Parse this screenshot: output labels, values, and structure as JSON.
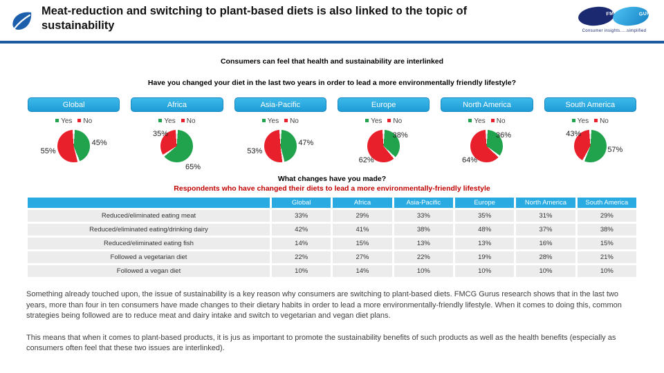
{
  "header": {
    "title": "Meat-reduction and switching to plant-based diets is also linked to the topic of sustainability",
    "logo": {
      "left": "FMCG",
      "right": "GURUS",
      "tagline": "Consumer insights.....simplified"
    }
  },
  "intro": {
    "statement": "Consumers can feel that health and sustainability are interlinked",
    "question": "Have you changed your diet in the last two years in order to lead a more environmentally friendly lifestyle?"
  },
  "legend": {
    "yes": "Yes",
    "no": "No"
  },
  "regions": [
    {
      "name": "Global",
      "yes": 45,
      "no": 55,
      "yes_label": "45%",
      "no_label": "55%",
      "yes_pos": "right-up",
      "no_pos": "left-mid"
    },
    {
      "name": "Africa",
      "yes": 65,
      "no": 35,
      "yes_label": "65%",
      "no_label": "35%",
      "yes_pos": "bottom-right",
      "no_pos": "top-left"
    },
    {
      "name": "Asia-Pacific",
      "yes": 47,
      "no": 53,
      "yes_label": "47%",
      "no_label": "53%",
      "yes_pos": "right-up",
      "no_pos": "left-mid"
    },
    {
      "name": "Europe",
      "yes": 38,
      "no": 62,
      "yes_label": "38%",
      "no_label": "62%",
      "yes_pos": "top-right",
      "no_pos": "bottom-left"
    },
    {
      "name": "North America",
      "yes": 36,
      "no": 64,
      "yes_label": "36%",
      "no_label": "64%",
      "yes_pos": "top-right",
      "no_pos": "bottom-left"
    },
    {
      "name": "South America",
      "yes": 57,
      "no": 43,
      "yes_label": "57%",
      "no_label": "43%",
      "yes_pos": "right-mid",
      "no_pos": "top-left"
    }
  ],
  "changes": {
    "title": "What changes have you made?",
    "subtitle": "Respondents who have changed their diets to lead a more environmentally-friendly lifestyle"
  },
  "table": {
    "columns": [
      "",
      "Global",
      "Africa",
      "Asia-Pacific",
      "Europe",
      "North America",
      "South America"
    ],
    "rows": [
      {
        "label": "Reduced/eliminated eating meat",
        "values": [
          "33%",
          "29%",
          "33%",
          "35%",
          "31%",
          "29%"
        ]
      },
      {
        "label": "Reduced/eliminated eating/drinking dairy",
        "values": [
          "42%",
          "41%",
          "38%",
          "48%",
          "37%",
          "38%"
        ]
      },
      {
        "label": "Reduced/eliminated eating fish",
        "values": [
          "14%",
          "15%",
          "13%",
          "13%",
          "16%",
          "15%"
        ]
      },
      {
        "label": "Followed a vegetarian diet",
        "values": [
          "22%",
          "27%",
          "22%",
          "19%",
          "28%",
          "21%"
        ]
      },
      {
        "label": "Followed a vegan diet",
        "values": [
          "10%",
          "14%",
          "10%",
          "10%",
          "10%",
          "10%"
        ]
      }
    ]
  },
  "paragraphs": [
    "Something already touched upon, the issue of sustainability is a key reason why consumers are switching to plant-based diets. FMCG Gurus research shows that in the last two years, more than four in ten consumers have made changes to their dietary habits in order to lead a more environmentally-friendly lifestyle. When it comes to doing this, common strategies being followed are to reduce meat and dairy intake and switch to vegetarian and vegan diet plans.",
    "This means that when it comes to plant-based products, it is jus as important to promote the sustainability benefits of such products as well as the health benefits (especially as consumers often feel that these two issues are interlinked)."
  ],
  "colors": {
    "accent_cyan": "#29ABE2",
    "yes_green": "#21A24D",
    "no_red": "#E8202C",
    "header_blue": "#1D5AA0",
    "red_text": "#C00000",
    "leaf_blue": "#1B5EAB"
  },
  "chart_data": [
    {
      "type": "pie",
      "title": "Have you changed your diet in the last two years in order to lead a more environmentally friendly lifestyle?",
      "legend": [
        "Yes",
        "No"
      ],
      "legend_position": "above each pie",
      "series": [
        {
          "name": "Global",
          "values": {
            "Yes": 45,
            "No": 55
          }
        },
        {
          "name": "Africa",
          "values": {
            "Yes": 65,
            "No": 35
          }
        },
        {
          "name": "Asia-Pacific",
          "values": {
            "Yes": 47,
            "No": 53
          }
        },
        {
          "name": "Europe",
          "values": {
            "Yes": 38,
            "No": 62
          }
        },
        {
          "name": "North America",
          "values": {
            "Yes": 36,
            "No": 64
          }
        },
        {
          "name": "South America",
          "values": {
            "Yes": 57,
            "No": 43
          }
        }
      ],
      "colors": {
        "Yes": "#21A24D",
        "No": "#E8202C"
      }
    },
    {
      "type": "table",
      "title": "What changes have you made?",
      "columns": [
        "Global",
        "Africa",
        "Asia-Pacific",
        "Europe",
        "North America",
        "South America"
      ],
      "rows": [
        {
          "label": "Reduced/eliminated eating meat",
          "values": [
            33,
            29,
            33,
            35,
            31,
            29
          ]
        },
        {
          "label": "Reduced/eliminated eating/drinking dairy",
          "values": [
            42,
            41,
            38,
            48,
            37,
            38
          ]
        },
        {
          "label": "Reduced/eliminated eating fish",
          "values": [
            14,
            15,
            13,
            13,
            16,
            15
          ]
        },
        {
          "label": "Followed a vegetarian diet",
          "values": [
            22,
            27,
            22,
            19,
            28,
            21
          ]
        },
        {
          "label": "Followed a vegan diet",
          "values": [
            10,
            14,
            10,
            10,
            10,
            10
          ]
        }
      ],
      "unit": "%"
    }
  ]
}
